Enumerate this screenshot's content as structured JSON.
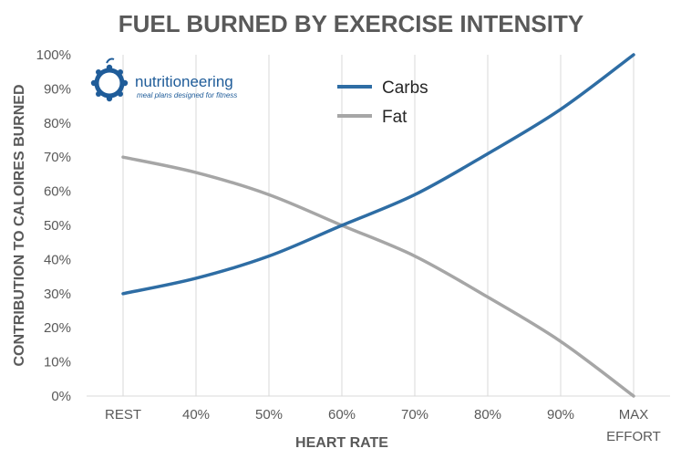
{
  "logo": {
    "name": "nutritioneering",
    "tagline": "meal plans designed for fitness",
    "color": "#1f5c99"
  },
  "chart_data": {
    "type": "line",
    "title": "FUEL BURNED BY EXERCISE INTENSITY",
    "xlabel": "HEART RATE",
    "ylabel": "CONTRIBUTION TO CALOIRES BURNED",
    "categories": [
      "REST",
      "40%",
      "50%",
      "60%",
      "70%",
      "80%",
      "90%",
      "MAX EFFORT"
    ],
    "x_tick_labels": [
      [
        "REST"
      ],
      [
        "40%"
      ],
      [
        "50%"
      ],
      [
        "60%"
      ],
      [
        "70%"
      ],
      [
        "80%"
      ],
      [
        "90%"
      ],
      [
        "MAX",
        "EFFORT"
      ]
    ],
    "ylim": [
      0,
      100
    ],
    "y_ticks": [
      0,
      10,
      20,
      30,
      40,
      50,
      60,
      70,
      80,
      90,
      100
    ],
    "y_tick_format": "%",
    "grid": "vertical",
    "legend_position": "top-center",
    "series": [
      {
        "name": "Carbs",
        "color": "#2e6da4",
        "values": [
          30,
          34.5,
          41,
          50,
          59,
          71,
          84,
          100
        ]
      },
      {
        "name": "Fat",
        "color": "#a6a6a6",
        "values": [
          70,
          65.5,
          59,
          50,
          41,
          29,
          16,
          0
        ]
      }
    ]
  }
}
